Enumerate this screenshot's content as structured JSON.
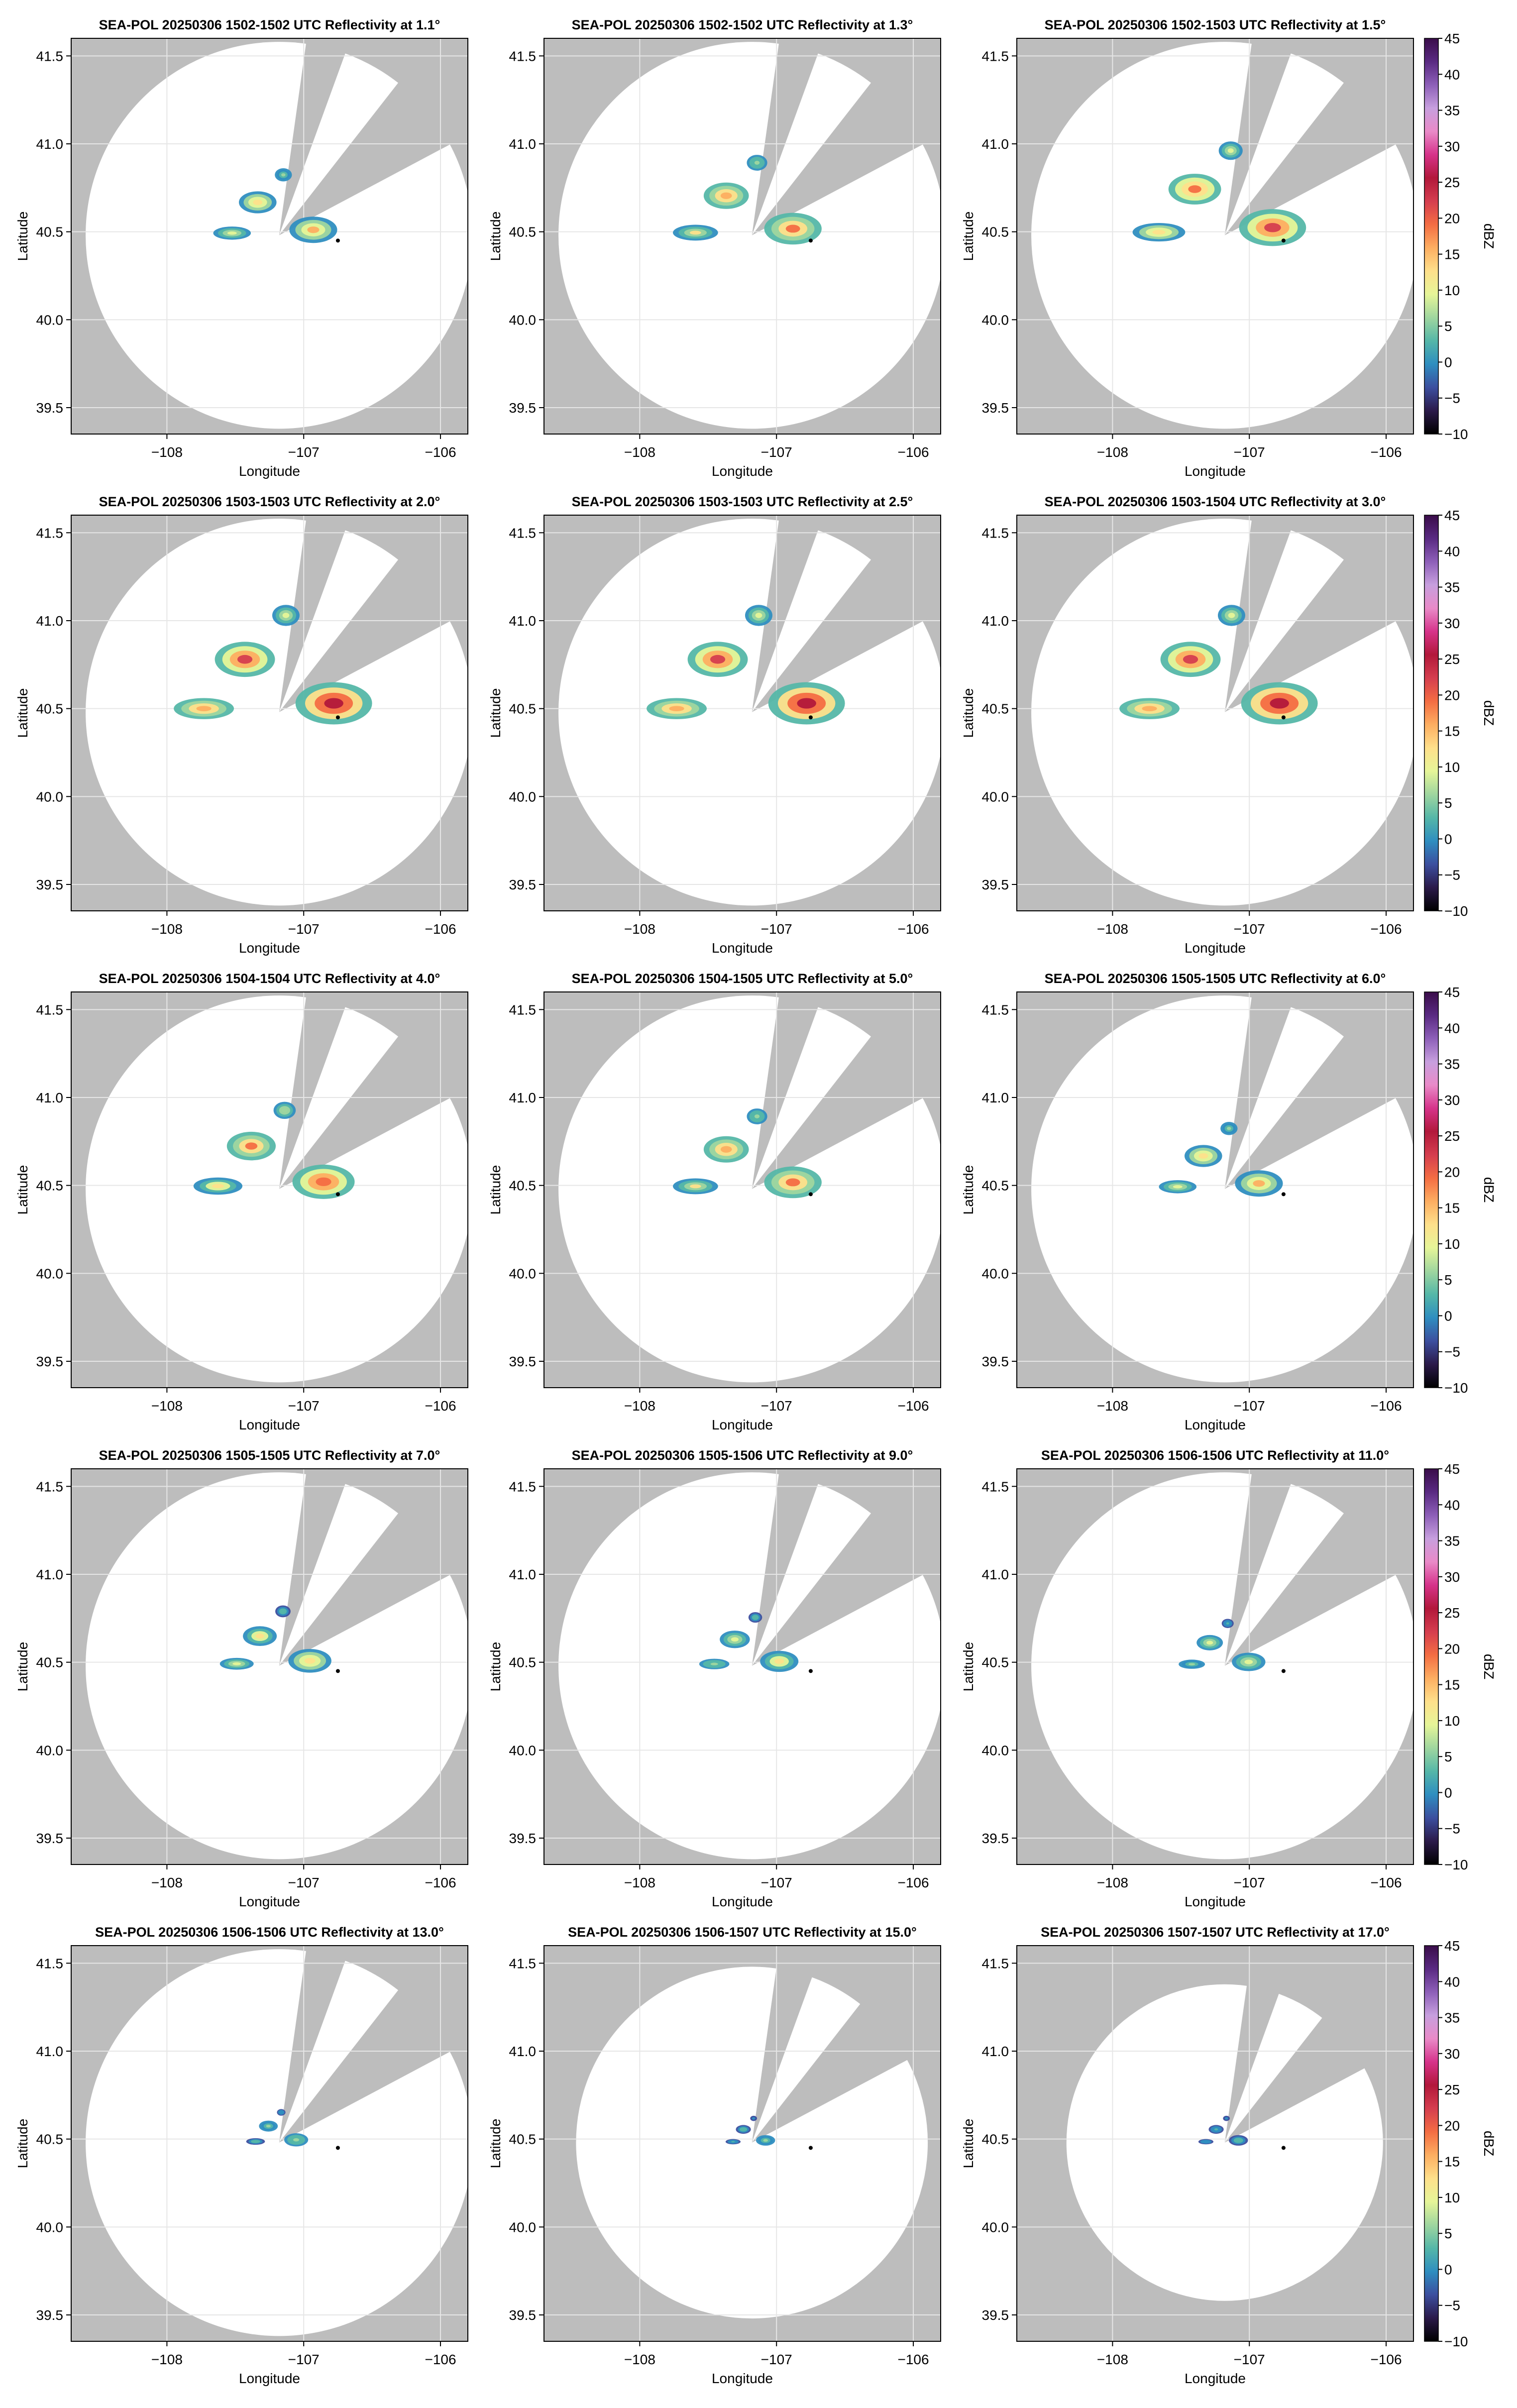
{
  "figure": {
    "colors": {
      "no_data": "#bdbdbd",
      "coverage": "#ffffff",
      "grid": "#e6e6e6",
      "marker": "#000000"
    },
    "colorbar": {
      "label": "dBZ",
      "ticks": [
        "45",
        "40",
        "35",
        "30",
        "25",
        "20",
        "15",
        "10",
        "5",
        "0",
        "−5",
        "−10"
      ],
      "range": [
        -10,
        45
      ],
      "palette": [
        "#000000",
        "#2b1a4a",
        "#3c4f9f",
        "#2f8ec0",
        "#55b7a8",
        "#9fd69f",
        "#e6f598",
        "#fee08b",
        "#fdae61",
        "#f46d43",
        "#d53e4f",
        "#b2183b",
        "#d6338a",
        "#e98ac8",
        "#c79fde",
        "#8d5fb8",
        "#5a2a82",
        "#3a0d4a"
      ]
    }
  },
  "chart_data": [
    {
      "type": "heatmap",
      "title": "SEA-POL 20250306 1502-1502 UTC Reflectivity at 1.1°",
      "xlabel": "Longitude",
      "ylabel": "Latitude",
      "xlim": [
        -108.7,
        -105.8
      ],
      "ylim": [
        39.35,
        41.6
      ],
      "xticks": [
        "−108",
        "−107",
        "−106"
      ],
      "yticks": [
        "41.5",
        "41.0",
        "40.5",
        "40.0",
        "39.5"
      ],
      "radar_site": {
        "lon": -107.18,
        "lat": 40.48
      },
      "point_marker": {
        "lon": -106.75,
        "lat": 40.45
      },
      "coverage_radius_deg": 1.1,
      "blocked_sectors_deg": [
        [
          8,
          20
        ],
        [
          38,
          62
        ]
      ],
      "colorbar": false,
      "echo_top_max_dbz": 20
    },
    {
      "type": "heatmap",
      "title": "SEA-POL 20250306 1502-1502 UTC Reflectivity at 1.3°",
      "xlabel": "Longitude",
      "ylabel": "Latitude",
      "xlim": [
        -108.7,
        -105.8
      ],
      "ylim": [
        39.35,
        41.6
      ],
      "xticks": [
        "−108",
        "−107",
        "−106"
      ],
      "yticks": [
        "41.5",
        "41.0",
        "40.5",
        "40.0",
        "39.5"
      ],
      "radar_site": {
        "lon": -107.18,
        "lat": 40.48
      },
      "point_marker": {
        "lon": -106.75,
        "lat": 40.45
      },
      "coverage_radius_deg": 1.1,
      "blocked_sectors_deg": [
        [
          8,
          20
        ],
        [
          38,
          62
        ]
      ],
      "colorbar": false,
      "echo_top_max_dbz": 24
    },
    {
      "type": "heatmap",
      "title": "SEA-POL 20250306 1502-1503 UTC Reflectivity at 1.5°",
      "xlabel": "Longitude",
      "ylabel": "Latitude",
      "xlim": [
        -108.7,
        -105.8
      ],
      "ylim": [
        39.35,
        41.6
      ],
      "xticks": [
        "−108",
        "−107",
        "−106"
      ],
      "yticks": [
        "41.5",
        "41.0",
        "40.5",
        "40.0",
        "39.5"
      ],
      "radar_site": {
        "lon": -107.18,
        "lat": 40.48
      },
      "point_marker": {
        "lon": -106.75,
        "lat": 40.45
      },
      "coverage_radius_deg": 1.1,
      "blocked_sectors_deg": [
        [
          8,
          20
        ],
        [
          38,
          62
        ]
      ],
      "colorbar": true,
      "echo_top_max_dbz": 28
    },
    {
      "type": "heatmap",
      "title": "SEA-POL 20250306 1503-1503 UTC Reflectivity at 2.0°",
      "xlabel": "Longitude",
      "ylabel": "Latitude",
      "xlim": [
        -108.7,
        -105.8
      ],
      "ylim": [
        39.35,
        41.6
      ],
      "xticks": [
        "−108",
        "−107",
        "−106"
      ],
      "yticks": [
        "41.5",
        "41.0",
        "40.5",
        "40.0",
        "39.5"
      ],
      "radar_site": {
        "lon": -107.18,
        "lat": 40.48
      },
      "point_marker": {
        "lon": -106.75,
        "lat": 40.45
      },
      "coverage_radius_deg": 1.1,
      "blocked_sectors_deg": [
        [
          8,
          20
        ],
        [
          38,
          62
        ]
      ],
      "colorbar": false,
      "echo_top_max_dbz": 32
    },
    {
      "type": "heatmap",
      "title": "SEA-POL 20250306 1503-1503 UTC Reflectivity at 2.5°",
      "xlabel": "Longitude",
      "ylabel": "Latitude",
      "xlim": [
        -108.7,
        -105.8
      ],
      "ylim": [
        39.35,
        41.6
      ],
      "xticks": [
        "−108",
        "−107",
        "−106"
      ],
      "yticks": [
        "41.5",
        "41.0",
        "40.5",
        "40.0",
        "39.5"
      ],
      "radar_site": {
        "lon": -107.18,
        "lat": 40.48
      },
      "point_marker": {
        "lon": -106.75,
        "lat": 40.45
      },
      "coverage_radius_deg": 1.1,
      "blocked_sectors_deg": [
        [
          8,
          20
        ],
        [
          38,
          62
        ]
      ],
      "colorbar": false,
      "echo_top_max_dbz": 32
    },
    {
      "type": "heatmap",
      "title": "SEA-POL 20250306 1503-1504 UTC Reflectivity at 3.0°",
      "xlabel": "Longitude",
      "ylabel": "Latitude",
      "xlim": [
        -108.7,
        -105.8
      ],
      "ylim": [
        39.35,
        41.6
      ],
      "xticks": [
        "−108",
        "−107",
        "−106"
      ],
      "yticks": [
        "41.5",
        "41.0",
        "40.5",
        "40.0",
        "39.5"
      ],
      "radar_site": {
        "lon": -107.18,
        "lat": 40.48
      },
      "point_marker": {
        "lon": -106.75,
        "lat": 40.45
      },
      "coverage_radius_deg": 1.1,
      "blocked_sectors_deg": [
        [
          8,
          20
        ],
        [
          38,
          62
        ]
      ],
      "colorbar": true,
      "echo_top_max_dbz": 32
    },
    {
      "type": "heatmap",
      "title": "SEA-POL 20250306 1504-1504 UTC Reflectivity at 4.0°",
      "xlabel": "Longitude",
      "ylabel": "Latitude",
      "xlim": [
        -108.7,
        -105.8
      ],
      "ylim": [
        39.35,
        41.6
      ],
      "xticks": [
        "−108",
        "−107",
        "−106"
      ],
      "yticks": [
        "41.5",
        "41.0",
        "40.5",
        "40.0",
        "39.5"
      ],
      "radar_site": {
        "lon": -107.18,
        "lat": 40.48
      },
      "point_marker": {
        "lon": -106.75,
        "lat": 40.45
      },
      "coverage_radius_deg": 1.1,
      "blocked_sectors_deg": [
        [
          8,
          20
        ],
        [
          38,
          62
        ]
      ],
      "colorbar": false,
      "echo_top_max_dbz": 26
    },
    {
      "type": "heatmap",
      "title": "SEA-POL 20250306 1504-1505 UTC Reflectivity at 5.0°",
      "xlabel": "Longitude",
      "ylabel": "Latitude",
      "xlim": [
        -108.7,
        -105.8
      ],
      "ylim": [
        39.35,
        41.6
      ],
      "xticks": [
        "−108",
        "−107",
        "−106"
      ],
      "yticks": [
        "41.5",
        "41.0",
        "40.5",
        "40.0",
        "39.5"
      ],
      "radar_site": {
        "lon": -107.18,
        "lat": 40.48
      },
      "point_marker": {
        "lon": -106.75,
        "lat": 40.45
      },
      "coverage_radius_deg": 1.1,
      "blocked_sectors_deg": [
        [
          8,
          20
        ],
        [
          38,
          62
        ]
      ],
      "colorbar": false,
      "echo_top_max_dbz": 24
    },
    {
      "type": "heatmap",
      "title": "SEA-POL 20250306 1505-1505 UTC Reflectivity at 6.0°",
      "xlabel": "Longitude",
      "ylabel": "Latitude",
      "xlim": [
        -108.7,
        -105.8
      ],
      "ylim": [
        39.35,
        41.6
      ],
      "xticks": [
        "−108",
        "−107",
        "−106"
      ],
      "yticks": [
        "41.5",
        "41.0",
        "40.5",
        "40.0",
        "39.5"
      ],
      "radar_site": {
        "lon": -107.18,
        "lat": 40.48
      },
      "point_marker": {
        "lon": -106.75,
        "lat": 40.45
      },
      "coverage_radius_deg": 1.1,
      "blocked_sectors_deg": [
        [
          8,
          20
        ],
        [
          38,
          62
        ]
      ],
      "colorbar": true,
      "echo_top_max_dbz": 20
    },
    {
      "type": "heatmap",
      "title": "SEA-POL 20250306 1505-1505 UTC Reflectivity at 7.0°",
      "xlabel": "Longitude",
      "ylabel": "Latitude",
      "xlim": [
        -108.7,
        -105.8
      ],
      "ylim": [
        39.35,
        41.6
      ],
      "xticks": [
        "−108",
        "−107",
        "−106"
      ],
      "yticks": [
        "41.5",
        "41.0",
        "40.5",
        "40.0",
        "39.5"
      ],
      "radar_site": {
        "lon": -107.18,
        "lat": 40.48
      },
      "point_marker": {
        "lon": -106.75,
        "lat": 40.45
      },
      "coverage_radius_deg": 1.1,
      "blocked_sectors_deg": [
        [
          8,
          20
        ],
        [
          38,
          62
        ]
      ],
      "colorbar": false,
      "echo_top_max_dbz": 18
    },
    {
      "type": "heatmap",
      "title": "SEA-POL 20250306 1505-1506 UTC Reflectivity at 9.0°",
      "xlabel": "Longitude",
      "ylabel": "Latitude",
      "xlim": [
        -108.7,
        -105.8
      ],
      "ylim": [
        39.35,
        41.6
      ],
      "xticks": [
        "−108",
        "−107",
        "−106"
      ],
      "yticks": [
        "41.5",
        "41.0",
        "40.5",
        "40.0",
        "39.5"
      ],
      "radar_site": {
        "lon": -107.18,
        "lat": 40.48
      },
      "point_marker": {
        "lon": -106.75,
        "lat": 40.45
      },
      "coverage_radius_deg": 1.1,
      "blocked_sectors_deg": [
        [
          8,
          20
        ],
        [
          38,
          62
        ]
      ],
      "colorbar": false,
      "echo_top_max_dbz": 16
    },
    {
      "type": "heatmap",
      "title": "SEA-POL 20250306 1506-1506 UTC Reflectivity at 11.0°",
      "xlabel": "Longitude",
      "ylabel": "Latitude",
      "xlim": [
        -108.7,
        -105.8
      ],
      "ylim": [
        39.35,
        41.6
      ],
      "xticks": [
        "−108",
        "−107",
        "−106"
      ],
      "yticks": [
        "41.5",
        "41.0",
        "40.5",
        "40.0",
        "39.5"
      ],
      "radar_site": {
        "lon": -107.18,
        "lat": 40.48
      },
      "point_marker": {
        "lon": -106.75,
        "lat": 40.45
      },
      "coverage_radius_deg": 1.1,
      "blocked_sectors_deg": [
        [
          8,
          20
        ],
        [
          38,
          62
        ]
      ],
      "colorbar": true,
      "echo_top_max_dbz": 14
    },
    {
      "type": "heatmap",
      "title": "SEA-POL 20250306 1506-1506 UTC Reflectivity at 13.0°",
      "xlabel": "Longitude",
      "ylabel": "Latitude",
      "xlim": [
        -108.7,
        -105.8
      ],
      "ylim": [
        39.35,
        41.6
      ],
      "xticks": [
        "−108",
        "−107",
        "−106"
      ],
      "yticks": [
        "41.5",
        "41.0",
        "40.5",
        "40.0",
        "39.5"
      ],
      "radar_site": {
        "lon": -107.18,
        "lat": 40.48
      },
      "point_marker": {
        "lon": -106.75,
        "lat": 40.45
      },
      "coverage_radius_deg": 1.1,
      "blocked_sectors_deg": [
        [
          8,
          20
        ],
        [
          38,
          62
        ]
      ],
      "colorbar": false,
      "echo_top_max_dbz": 10
    },
    {
      "type": "heatmap",
      "title": "SEA-POL 20250306 1506-1507 UTC Reflectivity at 15.0°",
      "xlabel": "Longitude",
      "ylabel": "Latitude",
      "xlim": [
        -108.7,
        -105.8
      ],
      "ylim": [
        39.35,
        41.6
      ],
      "xticks": [
        "−108",
        "−107",
        "−106"
      ],
      "yticks": [
        "41.5",
        "41.0",
        "40.5",
        "40.0",
        "39.5"
      ],
      "radar_site": {
        "lon": -107.18,
        "lat": 40.48
      },
      "point_marker": {
        "lon": -106.75,
        "lat": 40.45
      },
      "coverage_radius_deg": 1.0,
      "blocked_sectors_deg": [
        [
          8,
          20
        ],
        [
          38,
          62
        ]
      ],
      "colorbar": false,
      "echo_top_max_dbz": 8
    },
    {
      "type": "heatmap",
      "title": "SEA-POL 20250306 1507-1507 UTC Reflectivity at 17.0°",
      "xlabel": "Longitude",
      "ylabel": "Latitude",
      "xlim": [
        -108.7,
        -105.8
      ],
      "ylim": [
        39.35,
        41.6
      ],
      "xticks": [
        "−108",
        "−107",
        "−106"
      ],
      "yticks": [
        "41.5",
        "41.0",
        "40.5",
        "40.0",
        "39.5"
      ],
      "radar_site": {
        "lon": -107.18,
        "lat": 40.48
      },
      "point_marker": {
        "lon": -106.75,
        "lat": 40.45
      },
      "coverage_radius_deg": 0.9,
      "blocked_sectors_deg": [
        [
          8,
          20
        ],
        [
          38,
          62
        ]
      ],
      "colorbar": true,
      "echo_top_max_dbz": 6
    }
  ]
}
